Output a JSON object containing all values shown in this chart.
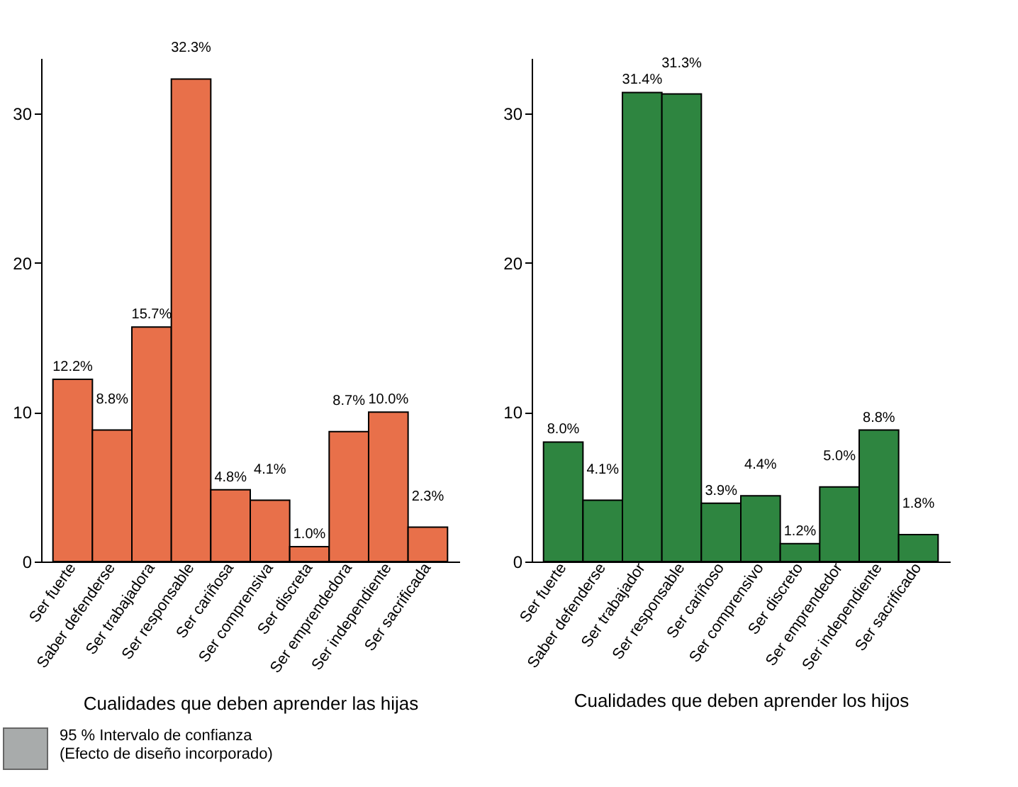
{
  "chart_data": [
    {
      "type": "bar",
      "xlabel": "Cualidades que deben aprender las hijas",
      "categories": [
        "Ser fuerte",
        "Saber defenderse",
        "Ser trabajadora",
        "Ser responsable",
        "Ser cariñosa",
        "Ser comprensiva",
        "Ser discreta",
        "Ser emprendedora",
        "Ser independiente",
        "Ser sacrificada"
      ],
      "values": [
        12.2,
        8.8,
        15.7,
        32.3,
        4.8,
        4.1,
        1.0,
        8.7,
        10.0,
        2.3
      ],
      "value_labels": [
        "12.2%",
        "8.8%",
        "15.7%",
        "32.3%",
        "4.8%",
        "4.1%",
        "1.0%",
        "8.7%",
        "10.0%",
        "2.3%"
      ],
      "color": "#e8704a",
      "ylim": [
        0,
        33.7
      ],
      "yticks": [
        0,
        10,
        20,
        30
      ],
      "grid": false,
      "annotations": [
        "95 % Intervalo de confianza",
        "(Efecto de diseño incorporado)"
      ]
    },
    {
      "type": "bar",
      "xlabel": "Cualidades que deben aprender los hijos",
      "categories": [
        "Ser fuerte",
        "Saber defenderse",
        "Ser trabajador",
        "Ser responsable",
        "Ser cariñoso",
        "Ser comprensivo",
        "Ser discreto",
        "Ser emprendedor",
        "Ser independiente",
        "Ser sacrificado"
      ],
      "values": [
        8.0,
        4.1,
        31.4,
        31.3,
        3.9,
        4.4,
        1.2,
        5.0,
        8.8,
        1.8
      ],
      "value_labels": [
        "8.0%",
        "4.1%",
        "31.4%",
        "31.3%",
        "3.9%",
        "4.4%",
        "1.2%",
        "5.0%",
        "8.8%",
        "1.8%"
      ],
      "color": "#2e8540",
      "ylim": [
        0,
        33.7
      ],
      "yticks": [
        0,
        10,
        20,
        30
      ],
      "grid": false
    }
  ]
}
